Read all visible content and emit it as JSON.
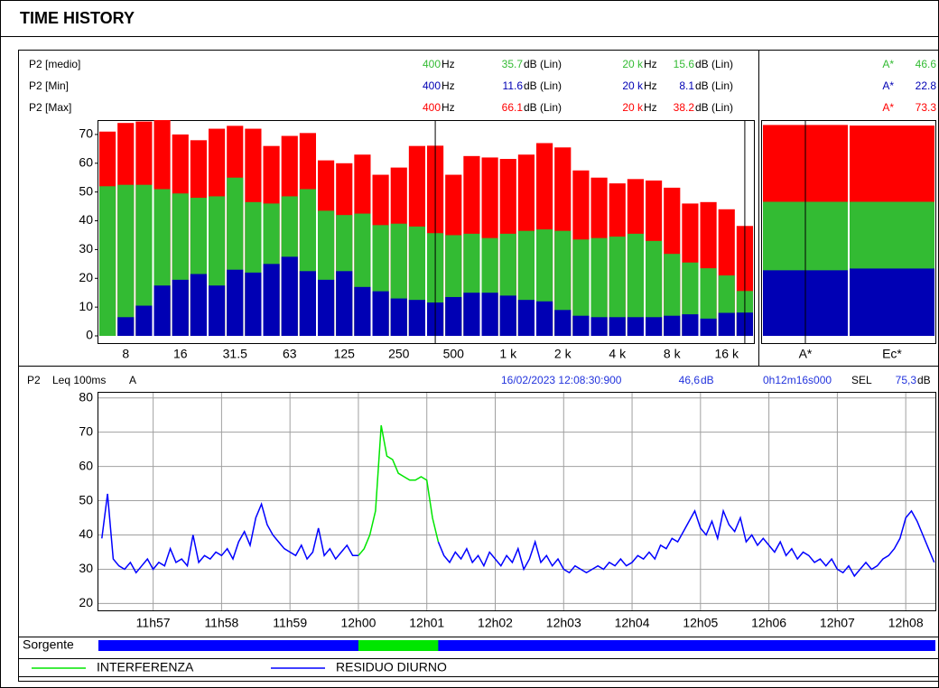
{
  "title": "TIME HISTORY",
  "readout": {
    "freq1": "400",
    "freq2": "20 k",
    "freq_unit": "Hz",
    "level_unit": "dB (Lin)"
  },
  "time_header": {
    "channel": "P2",
    "parameter": "Leq 100ms",
    "weighting": "A",
    "timestamp": "16/02/2023 12:08:30:900",
    "level": "46,6",
    "level_unit": "dB",
    "duration": "0h12m16s000",
    "sel_label": "SEL",
    "sel": "75,3",
    "sel_unit": "dB"
  },
  "source_label": "Sorgente",
  "chart_data": [
    {
      "type": "bar",
      "overlay": true,
      "categories": [
        null,
        "8",
        null,
        null,
        "16",
        null,
        null,
        "31.5",
        null,
        null,
        "63",
        null,
        null,
        "125",
        null,
        null,
        "250",
        null,
        null,
        "500",
        null,
        null,
        "1 k",
        null,
        null,
        "2 k",
        null,
        null,
        "4 k",
        null,
        null,
        "8 k",
        null,
        null,
        "16 k",
        null
      ],
      "series": [
        {
          "name": "P2 [Max]",
          "color": "#ff0000",
          "values": [
            71,
            74,
            74.5,
            75,
            70,
            68,
            72,
            73,
            72,
            66,
            69.5,
            70.5,
            61,
            60,
            63,
            56,
            58.5,
            66,
            66.1,
            56,
            62.5,
            62,
            61.5,
            63,
            67,
            65.5,
            57.5,
            55,
            53,
            54.5,
            54,
            51.5,
            46,
            46.5,
            44,
            38.2
          ]
        },
        {
          "name": "P2 [medio]",
          "color": "#33bb33",
          "values": [
            52,
            52.5,
            52.5,
            51,
            49.5,
            48,
            48.5,
            55,
            46.5,
            46,
            48.5,
            51,
            43.5,
            42,
            42.5,
            38.5,
            39,
            38,
            35.7,
            35,
            35.5,
            34,
            35.5,
            36.5,
            37,
            36.5,
            33.5,
            34,
            34.5,
            35.5,
            33,
            28.5,
            25.5,
            23.5,
            21,
            15.6
          ]
        },
        {
          "name": "P2 [Min]",
          "color": "#0000b4",
          "values": [
            0,
            6.5,
            10.5,
            17.5,
            19.5,
            21.5,
            17.5,
            23,
            22,
            25,
            27.5,
            22.5,
            19.5,
            22.5,
            17,
            15.5,
            13,
            12.5,
            11.6,
            13.5,
            15,
            15,
            14,
            12.5,
            12,
            9,
            7,
            6.5,
            6.5,
            6.5,
            6.5,
            7,
            7.5,
            6,
            8,
            8.1
          ]
        }
      ],
      "ylim": [
        0,
        75
      ],
      "yticks": [
        0,
        10,
        20,
        30,
        40,
        50,
        60,
        70
      ]
    },
    {
      "type": "bar",
      "overlay": true,
      "categories": [
        "A*",
        "Ec*"
      ],
      "series": [
        {
          "color": "#ff0000",
          "values": [
            73.3,
            73.1
          ]
        },
        {
          "color": "#33bb33",
          "values": [
            46.6,
            46.6
          ]
        },
        {
          "color": "#0000b4",
          "values": [
            22.8,
            23.4
          ]
        }
      ],
      "ylim": [
        0,
        75
      ]
    },
    {
      "type": "line",
      "grid": true,
      "x": [
        42975,
        42980,
        42985,
        42990,
        42995,
        43000,
        43005,
        43010,
        43015,
        43020,
        43025,
        43030,
        43035,
        43040,
        43045,
        43050,
        43055,
        43060,
        43065,
        43070,
        43075,
        43080,
        43085,
        43090,
        43095,
        43100,
        43105,
        43110,
        43115,
        43120,
        43125,
        43130,
        43135,
        43140,
        43145,
        43150,
        43155,
        43160,
        43165,
        43170,
        43175,
        43180,
        43185,
        43190,
        43195,
        43200,
        43205,
        43210,
        43215,
        43220,
        43225,
        43230,
        43235,
        43240,
        43245,
        43250,
        43255,
        43260,
        43265,
        43270,
        43275,
        43280,
        43285,
        43290,
        43295,
        43300,
        43305,
        43310,
        43315,
        43320,
        43325,
        43330,
        43335,
        43340,
        43345,
        43350,
        43355,
        43360,
        43365,
        43370,
        43375,
        43380,
        43385,
        43390,
        43395,
        43400,
        43405,
        43410,
        43415,
        43420,
        43425,
        43430,
        43435,
        43440,
        43445,
        43450,
        43455,
        43460,
        43465,
        43470,
        43475,
        43480,
        43485,
        43490,
        43495,
        43500,
        43505,
        43510,
        43515,
        43520,
        43525,
        43530,
        43535,
        43540,
        43545,
        43550,
        43555,
        43560,
        43565,
        43570,
        43575,
        43580,
        43585,
        43590,
        43595,
        43600,
        43605,
        43610,
        43615,
        43620,
        43625,
        43630,
        43635,
        43640,
        43645,
        43650,
        43655,
        43660,
        43665,
        43670,
        43675,
        43680,
        43685,
        43690,
        43695,
        43700,
        43705
      ],
      "xlim": [
        42972,
        43706
      ],
      "xticks": [
        {
          "value": 43020,
          "label": "11h57"
        },
        {
          "value": 43080,
          "label": "11h58"
        },
        {
          "value": 43140,
          "label": "11h59"
        },
        {
          "value": 43200,
          "label": "12h00"
        },
        {
          "value": 43260,
          "label": "12h01"
        },
        {
          "value": 43320,
          "label": "12h02"
        },
        {
          "value": 43380,
          "label": "12h03"
        },
        {
          "value": 43440,
          "label": "12h04"
        },
        {
          "value": 43500,
          "label": "12h05"
        },
        {
          "value": 43560,
          "label": "12h06"
        },
        {
          "value": 43620,
          "label": "12h07"
        },
        {
          "value": 43680,
          "label": "12h08"
        }
      ],
      "ylim": [
        18,
        81.5
      ],
      "yticks": [
        20,
        30,
        40,
        50,
        60,
        70,
        80
      ],
      "series": [
        {
          "name": "INTERFERENZA",
          "color": "#00e600",
          "x": [
            43200,
            43205,
            43210,
            43215,
            43220,
            43225,
            43230,
            43235,
            43240,
            43245,
            43250,
            43255,
            43260,
            43265,
            43270
          ],
          "values": [
            34,
            36,
            40,
            47,
            72,
            63,
            62,
            58,
            57,
            56,
            56,
            57,
            56,
            45,
            38
          ]
        },
        {
          "name": "RESIDUO DIURNO",
          "color": "#0000ff",
          "values": [
            39,
            52,
            33,
            31,
            30,
            32,
            29,
            31,
            33,
            30,
            32,
            31,
            36,
            32,
            33,
            31,
            40,
            32,
            34,
            33,
            35,
            34,
            36,
            33,
            38,
            41,
            37,
            45,
            49,
            43,
            40,
            38,
            36,
            35,
            34,
            37,
            33,
            35,
            42,
            34,
            36,
            33,
            35,
            37,
            34,
            34,
            null,
            null,
            null,
            null,
            null,
            null,
            null,
            null,
            null,
            null,
            null,
            null,
            null,
            38,
            34,
            32,
            35,
            33,
            36,
            32,
            34,
            31,
            35,
            33,
            31,
            34,
            32,
            36,
            30,
            33,
            38,
            32,
            34,
            31,
            33,
            30,
            29,
            31,
            30,
            29,
            30,
            31,
            30,
            32,
            31,
            33,
            31,
            32,
            34,
            33,
            35,
            33,
            37,
            36,
            39,
            38,
            41,
            44,
            47,
            42,
            40,
            44,
            39,
            47,
            43,
            41,
            45,
            38,
            40,
            37,
            39,
            37,
            35,
            38,
            34,
            36,
            33,
            35,
            34,
            32,
            33,
            31,
            33,
            30,
            29,
            31,
            28,
            30,
            32,
            30,
            31,
            33,
            34,
            36,
            39,
            45,
            47,
            44,
            40,
            36,
            32
          ]
        }
      ]
    }
  ]
}
